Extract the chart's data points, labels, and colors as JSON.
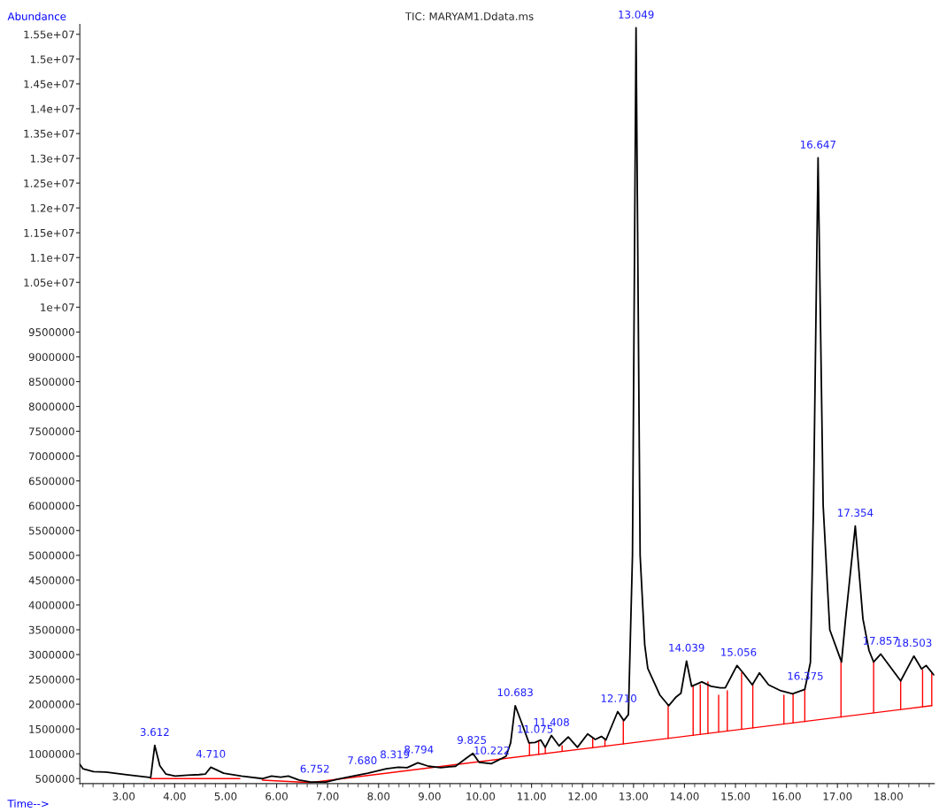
{
  "chart_data": {
    "type": "line",
    "title": "TIC: MARYAM1.Ddata.ms",
    "xlabel": "Time-->",
    "ylabel": "Abundance",
    "xlim": [
      2.14,
      18.9
    ],
    "ylim": [
      400000,
      15700000
    ],
    "xticks": [
      {
        "value": 3,
        "label": "3.00"
      },
      {
        "value": 4,
        "label": "4.00"
      },
      {
        "value": 5,
        "label": "5.00"
      },
      {
        "value": 6,
        "label": "6.00"
      },
      {
        "value": 7,
        "label": "7.00"
      },
      {
        "value": 8,
        "label": "8.00"
      },
      {
        "value": 9,
        "label": "9.00"
      },
      {
        "value": 10,
        "label": "10.00"
      },
      {
        "value": 11,
        "label": "11.00"
      },
      {
        "value": 12,
        "label": "12.00"
      },
      {
        "value": 13,
        "label": "13.00"
      },
      {
        "value": 14,
        "label": "14.00"
      },
      {
        "value": 15,
        "label": "15.00"
      },
      {
        "value": 16,
        "label": "16.00"
      },
      {
        "value": 17,
        "label": "17.00"
      },
      {
        "value": 18,
        "label": "18.00"
      }
    ],
    "yticks": [
      500000,
      1000000,
      1500000,
      2000000,
      2500000,
      3000000,
      3500000,
      4000000,
      4500000,
      5000000,
      5500000,
      6000000,
      6500000,
      7000000,
      7500000,
      8000000,
      8500000,
      9000000,
      9500000,
      {
        "value": 10000000,
        "label": "1e+07"
      },
      {
        "value": 10500000,
        "label": "1.05e+07"
      },
      {
        "value": 11000000,
        "label": "1.1e+07"
      },
      {
        "value": 11500000,
        "label": "1.15e+07"
      },
      {
        "value": 12000000,
        "label": "1.2e+07"
      },
      {
        "value": 12500000,
        "label": "1.25e+07"
      },
      {
        "value": 13000000,
        "label": "1.3e+07"
      },
      {
        "value": 13500000,
        "label": "1.35e+07"
      },
      {
        "value": 14000000,
        "label": "1.4e+07"
      },
      {
        "value": 14500000,
        "label": "1.45e+07"
      },
      {
        "value": 15000000,
        "label": "1.5e+07"
      },
      {
        "value": 15500000,
        "label": "1.55e+07"
      }
    ],
    "grid": false,
    "marker": "none",
    "line_style": "solid",
    "series": [
      {
        "color": "#000000",
        "x": [
          2.14,
          2.2,
          2.41,
          2.65,
          3.06,
          3.47,
          3.53,
          3.61,
          3.71,
          3.83,
          4.01,
          4.25,
          4.48,
          4.6,
          4.71,
          4.96,
          5.31,
          5.72,
          5.9,
          6.08,
          6.23,
          6.44,
          6.67,
          6.97,
          7.2,
          7.5,
          7.79,
          8.15,
          8.39,
          8.56,
          8.77,
          8.98,
          9.22,
          9.51,
          9.73,
          9.85,
          9.97,
          10.21,
          10.5,
          10.59,
          10.68,
          10.8,
          10.95,
          11.07,
          11.18,
          11.27,
          11.39,
          11.54,
          11.72,
          11.9,
          12.1,
          12.25,
          12.37,
          12.46,
          12.69,
          12.81,
          12.9,
          12.98,
          13.05,
          13.13,
          13.22,
          13.28,
          13.52,
          13.69,
          13.84,
          13.93,
          14.04,
          14.14,
          14.34,
          14.52,
          14.7,
          14.8,
          15.03,
          15.15,
          15.33,
          15.47,
          15.65,
          15.89,
          16.12,
          16.36,
          16.47,
          16.53,
          16.62,
          16.72,
          16.85,
          17.08,
          17.16,
          17.35,
          17.5,
          17.62,
          17.71,
          17.85,
          18.24,
          18.5,
          18.65,
          18.74,
          18.89
        ],
        "values": [
          790000,
          700000,
          640000,
          630000,
          580000,
          530000,
          520000,
          1170000,
          760000,
          590000,
          550000,
          570000,
          580000,
          590000,
          730000,
          610000,
          550000,
          500000,
          550000,
          530000,
          550000,
          470000,
          430000,
          430000,
          490000,
          550000,
          610000,
          700000,
          730000,
          720000,
          820000,
          750000,
          720000,
          750000,
          920000,
          1010000,
          830000,
          800000,
          950000,
          1220000,
          1970000,
          1640000,
          1220000,
          1230000,
          1280000,
          1130000,
          1370000,
          1160000,
          1340000,
          1130000,
          1400000,
          1290000,
          1350000,
          1280000,
          1850000,
          1670000,
          1790000,
          5000000,
          15630000,
          5000000,
          3200000,
          2720000,
          2180000,
          1970000,
          2150000,
          2220000,
          2870000,
          2360000,
          2450000,
          2360000,
          2330000,
          2330000,
          2780000,
          2630000,
          2390000,
          2630000,
          2390000,
          2270000,
          2210000,
          2300000,
          2840000,
          6000000,
          13010000,
          6000000,
          3500000,
          2850000,
          3720000,
          5590000,
          3720000,
          3080000,
          2850000,
          3010000,
          2470000,
          2970000,
          2710000,
          2780000,
          2590000
        ]
      },
      {
        "color": "#ff0000",
        "x": [
          3.53,
          5.28
        ],
        "values": [
          500000,
          500000
        ]
      },
      {
        "color": "#ff0000",
        "x": [
          5.72,
          6.67,
          18.85
        ],
        "values": [
          470000,
          420000,
          1970000
        ]
      },
      {
        "color": "#ff0000",
        "x": [
          10.96,
          10.96
        ],
        "values": [
          970000,
          1220000
        ]
      },
      {
        "color": "#ff0000",
        "x": [
          11.14,
          11.14
        ],
        "values": [
          990000,
          1250000
        ]
      },
      {
        "color": "#ff0000",
        "x": [
          11.27,
          11.27
        ],
        "values": [
          1010000,
          1130000
        ]
      },
      {
        "color": "#ff0000",
        "x": [
          11.6,
          11.6
        ],
        "values": [
          1050000,
          1160000
        ]
      },
      {
        "color": "#ff0000",
        "x": [
          12.2,
          12.2
        ],
        "values": [
          1120000,
          1310000
        ]
      },
      {
        "color": "#ff0000",
        "x": [
          12.44,
          12.44
        ],
        "values": [
          1150000,
          1280000
        ]
      },
      {
        "color": "#ff0000",
        "x": [
          12.8,
          12.8
        ],
        "values": [
          1200000,
          1670000
        ]
      },
      {
        "color": "#ff0000",
        "x": [
          13.68,
          13.68
        ],
        "values": [
          1310000,
          1970000
        ]
      },
      {
        "color": "#ff0000",
        "x": [
          14.17,
          14.17
        ],
        "values": [
          1370000,
          2360000
        ]
      },
      {
        "color": "#ff0000",
        "x": [
          14.31,
          14.31
        ],
        "values": [
          1390000,
          2390000
        ]
      },
      {
        "color": "#ff0000",
        "x": [
          14.46,
          14.46
        ],
        "values": [
          1410000,
          2450000
        ]
      },
      {
        "color": "#ff0000",
        "x": [
          14.67,
          14.67
        ],
        "values": [
          1440000,
          2180000
        ]
      },
      {
        "color": "#ff0000",
        "x": [
          14.84,
          14.84
        ],
        "values": [
          1460000,
          2270000
        ]
      },
      {
        "color": "#ff0000",
        "x": [
          15.12,
          15.12
        ],
        "values": [
          1500000,
          2630000
        ]
      },
      {
        "color": "#ff0000",
        "x": [
          15.34,
          15.34
        ],
        "values": [
          1520000,
          2390000
        ]
      },
      {
        "color": "#ff0000",
        "x": [
          15.95,
          15.95
        ],
        "values": [
          1600000,
          2180000
        ]
      },
      {
        "color": "#ff0000",
        "x": [
          16.13,
          16.13
        ],
        "values": [
          1620000,
          2210000
        ]
      },
      {
        "color": "#ff0000",
        "x": [
          16.36,
          16.36
        ],
        "values": [
          1650000,
          2300000
        ]
      },
      {
        "color": "#ff0000",
        "x": [
          17.07,
          17.07
        ],
        "values": [
          1740000,
          2850000
        ]
      },
      {
        "color": "#ff0000",
        "x": [
          17.71,
          17.71
        ],
        "values": [
          1830000,
          2870000
        ]
      },
      {
        "color": "#ff0000",
        "x": [
          18.24,
          18.24
        ],
        "values": [
          1890000,
          2470000
        ]
      },
      {
        "color": "#ff0000",
        "x": [
          18.67,
          18.67
        ],
        "values": [
          1950000,
          2690000
        ]
      },
      {
        "color": "#ff0000",
        "x": [
          18.85,
          18.85
        ],
        "values": [
          1970000,
          2630000
        ]
      }
    ],
    "annotations": [
      {
        "text": "3.612",
        "x": 3.61,
        "y": 1170000
      },
      {
        "text": "4.710",
        "x": 4.71,
        "y": 730000
      },
      {
        "text": "6.752",
        "x": 6.75,
        "y": 430000
      },
      {
        "text": "7.680",
        "x": 7.68,
        "y": 600000
      },
      {
        "text": "8.319",
        "x": 8.32,
        "y": 720000
      },
      {
        "text": "8.794",
        "x": 8.79,
        "y": 820000
      },
      {
        "text": "9.825",
        "x": 9.83,
        "y": 1010000
      },
      {
        "text": "10.222",
        "x": 10.22,
        "y": 800000
      },
      {
        "text": "10.683",
        "x": 10.68,
        "y": 1970000
      },
      {
        "text": "11.075",
        "x": 11.07,
        "y": 1230000
      },
      {
        "text": "11.408",
        "x": 11.39,
        "y": 1370000
      },
      {
        "text": "12.710",
        "x": 12.71,
        "y": 1850000
      },
      {
        "text": "13.049",
        "x": 13.05,
        "y": 15630000
      },
      {
        "text": "14.039",
        "x": 14.04,
        "y": 2870000
      },
      {
        "text": "15.056",
        "x": 15.06,
        "y": 2780000
      },
      {
        "text": "16.375",
        "x": 16.37,
        "y": 2300000
      },
      {
        "text": "16.647",
        "x": 16.62,
        "y": 13010000
      },
      {
        "text": "17.354",
        "x": 17.35,
        "y": 5590000
      },
      {
        "text": "17.857",
        "x": 17.85,
        "y": 3010000
      },
      {
        "text": "18.503",
        "x": 18.5,
        "y": 2970000
      }
    ]
  }
}
